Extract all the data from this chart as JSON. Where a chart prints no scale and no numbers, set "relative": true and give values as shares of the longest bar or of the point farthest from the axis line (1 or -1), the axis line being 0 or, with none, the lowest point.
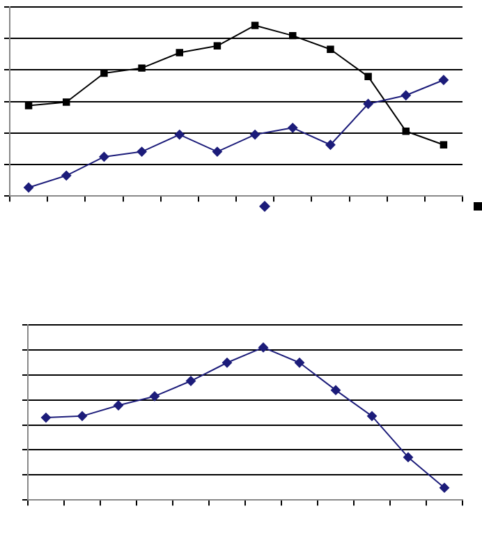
{
  "chart_data": [
    {
      "type": "line",
      "relative": true,
      "grid": "y",
      "categories": [
        null,
        null,
        null,
        null,
        null,
        null,
        null,
        null,
        null,
        null,
        null,
        null
      ],
      "series": [
        {
          "color": "#1c1c7a",
          "marker": "diamond",
          "values": [
            0.05,
            0.12,
            0.23,
            0.26,
            0.36,
            0.26,
            0.36,
            0.4,
            0.3,
            0.54,
            0.59,
            0.68
          ]
        },
        {
          "color": "#000000",
          "marker": "square",
          "values": [
            0.53,
            0.55,
            0.72,
            0.75,
            0.84,
            0.88,
            1,
            0.94,
            0.86,
            0.7,
            0.38,
            0.3
          ]
        }
      ]
    },
    {
      "type": "line",
      "relative": true,
      "grid": "y",
      "categories": [
        null,
        null,
        null,
        null,
        null,
        null,
        null,
        null,
        null,
        null,
        null,
        null
      ],
      "series": [
        {
          "color": "#1c1c7a",
          "marker": "diamond",
          "values": [
            0.54,
            0.55,
            0.62,
            0.68,
            0.78,
            0.9,
            1,
            0.9,
            0.72,
            0.55,
            0.28,
            0.08
          ]
        }
      ]
    }
  ]
}
